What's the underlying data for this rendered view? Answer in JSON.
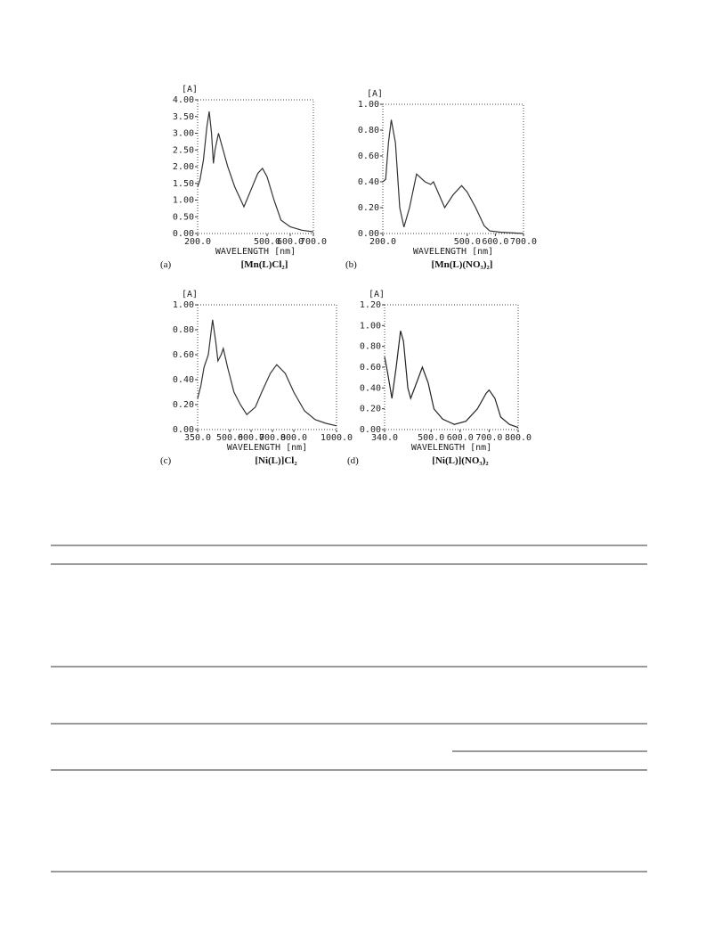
{
  "chart_data": [
    {
      "type": "line",
      "panel": "(a)",
      "caption": "[Mn(L)Cl₂]",
      "y_label": "[A]",
      "x_label": "WAVELENGTH [nm]",
      "color": "#333333",
      "x": [
        200,
        210,
        225,
        240,
        250,
        260,
        268,
        275,
        290,
        310,
        330,
        360,
        400,
        430,
        460,
        480,
        500,
        530,
        560,
        600,
        650,
        700
      ],
      "values": [
        1.4,
        1.6,
        2.2,
        3.2,
        3.65,
        3.0,
        2.1,
        2.5,
        3.0,
        2.5,
        2.0,
        1.4,
        0.8,
        1.3,
        1.8,
        1.95,
        1.7,
        1.0,
        0.4,
        0.2,
        0.1,
        0.05
      ],
      "xlim": [
        200,
        700
      ],
      "ylim": [
        0,
        4
      ],
      "xticks": [
        {
          "value": 200,
          "label": "200.0"
        },
        {
          "value": 500,
          "label": "500.0"
        },
        {
          "value": 600,
          "label": "600.0"
        },
        {
          "value": 700,
          "label": "700.0"
        }
      ],
      "yticks": [
        {
          "value": 0,
          "label": "0.00"
        },
        {
          "value": 0.5,
          "label": "0.50"
        },
        {
          "value": 1,
          "label": "1.00"
        },
        {
          "value": 1.5,
          "label": "1.50"
        },
        {
          "value": 2,
          "label": "2.00"
        },
        {
          "value": 2.5,
          "label": "2.50"
        },
        {
          "value": 3,
          "label": "3.00"
        },
        {
          "value": 3.5,
          "label": "3.50"
        },
        {
          "value": 4,
          "label": "4.00"
        }
      ]
    },
    {
      "type": "line",
      "panel": "(b)",
      "caption": "[Mn(L)(NO₃)₂]",
      "y_label": "[A]",
      "x_label": "WAVELENGTH [nm]",
      "color": "#333333",
      "x": [
        200,
        210,
        220,
        230,
        245,
        260,
        275,
        295,
        320,
        340,
        350,
        370,
        380,
        400,
        420,
        450,
        480,
        500,
        530,
        560,
        580,
        620,
        700
      ],
      "values": [
        0.4,
        0.42,
        0.7,
        0.88,
        0.7,
        0.2,
        0.05,
        0.2,
        0.46,
        0.42,
        0.4,
        0.38,
        0.4,
        0.3,
        0.2,
        0.3,
        0.37,
        0.32,
        0.2,
        0.06,
        0.02,
        0.01,
        0.0
      ],
      "xlim": [
        200,
        700
      ],
      "ylim": [
        0,
        1
      ],
      "xticks": [
        {
          "value": 200,
          "label": "200.0"
        },
        {
          "value": 500,
          "label": "500.0"
        },
        {
          "value": 600,
          "label": "600.0"
        },
        {
          "value": 700,
          "label": "700.0"
        }
      ],
      "yticks": [
        {
          "value": 0,
          "label": "0.00"
        },
        {
          "value": 0.2,
          "label": "0.20"
        },
        {
          "value": 0.4,
          "label": "0.40"
        },
        {
          "value": 0.6,
          "label": "0.60"
        },
        {
          "value": 0.8,
          "label": "0.80"
        },
        {
          "value": 1,
          "label": "1.00"
        }
      ]
    },
    {
      "type": "line",
      "panel": "(c)",
      "caption": "[Ni(L)]Cl₂",
      "y_label": "[A]",
      "x_label": "WAVELENGTH [nm]",
      "color": "#333333",
      "x": [
        350,
        365,
        380,
        400,
        420,
        435,
        445,
        460,
        470,
        490,
        520,
        550,
        580,
        620,
        650,
        690,
        720,
        760,
        800,
        850,
        900,
        950,
        1000
      ],
      "values": [
        0.25,
        0.35,
        0.5,
        0.6,
        0.88,
        0.7,
        0.55,
        0.6,
        0.65,
        0.5,
        0.3,
        0.2,
        0.12,
        0.18,
        0.3,
        0.45,
        0.52,
        0.45,
        0.3,
        0.15,
        0.08,
        0.05,
        0.03
      ],
      "xlim": [
        350,
        1000
      ],
      "ylim": [
        0,
        1
      ],
      "xticks": [
        {
          "value": 350,
          "label": "350.0"
        },
        {
          "value": 500,
          "label": "500.0"
        },
        {
          "value": 600,
          "label": "600.0"
        },
        {
          "value": 700,
          "label": "700.0"
        },
        {
          "value": 800,
          "label": "800.0"
        },
        {
          "value": 1000,
          "label": "1000.0"
        }
      ],
      "yticks": [
        {
          "value": 0,
          "label": "0.00"
        },
        {
          "value": 0.2,
          "label": "0.20"
        },
        {
          "value": 0.4,
          "label": "0.40"
        },
        {
          "value": 0.6,
          "label": "0.60"
        },
        {
          "value": 0.8,
          "label": "0.80"
        },
        {
          "value": 1,
          "label": "1.00"
        }
      ]
    },
    {
      "type": "line",
      "panel": "(d)",
      "caption": "[Ni(L)](NO₃)₂",
      "y_label": "[A]",
      "x_label": "WAVELENGTH [nm]",
      "color": "#222222",
      "x": [
        340,
        350,
        365,
        380,
        395,
        405,
        420,
        430,
        450,
        470,
        490,
        510,
        540,
        580,
        620,
        660,
        690,
        700,
        720,
        740,
        770,
        800
      ],
      "values": [
        0.7,
        0.55,
        0.3,
        0.6,
        0.95,
        0.85,
        0.4,
        0.3,
        0.45,
        0.6,
        0.45,
        0.2,
        0.1,
        0.05,
        0.08,
        0.2,
        0.35,
        0.38,
        0.3,
        0.12,
        0.05,
        0.02
      ],
      "xlim": [
        340,
        800
      ],
      "ylim": [
        0,
        1.2
      ],
      "xticks": [
        {
          "value": 340,
          "label": "340.0"
        },
        {
          "value": 500,
          "label": "500.0"
        },
        {
          "value": 600,
          "label": "600.0"
        },
        {
          "value": 700,
          "label": "700.0"
        },
        {
          "value": 800,
          "label": "800.0"
        }
      ],
      "yticks": [
        {
          "value": 0,
          "label": "0.00"
        },
        {
          "value": 0.2,
          "label": "0.20"
        },
        {
          "value": 0.4,
          "label": "0.40"
        },
        {
          "value": 0.6,
          "label": "0.60"
        },
        {
          "value": 0.8,
          "label": "0.80"
        },
        {
          "value": 1,
          "label": "1.00"
        },
        {
          "value": 1.2,
          "label": "1.20"
        }
      ]
    }
  ]
}
